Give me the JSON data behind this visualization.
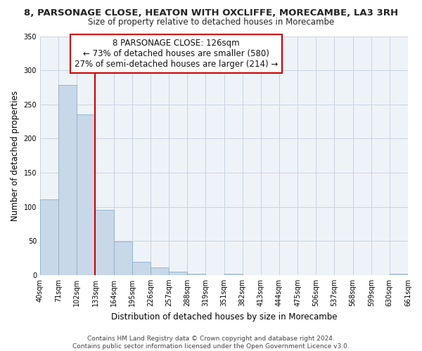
{
  "title": "8, PARSONAGE CLOSE, HEATON WITH OXCLIFFE, MORECAMBE, LA3 3RH",
  "subtitle": "Size of property relative to detached houses in Morecambe",
  "xlabel": "Distribution of detached houses by size in Morecambe",
  "ylabel": "Number of detached properties",
  "bar_values": [
    111,
    279,
    235,
    95,
    49,
    19,
    11,
    5,
    2,
    0,
    2,
    0,
    0,
    0,
    0,
    0,
    0,
    0,
    0,
    2
  ],
  "bar_labels": [
    "40sqm",
    "71sqm",
    "102sqm",
    "133sqm",
    "164sqm",
    "195sqm",
    "226sqm",
    "257sqm",
    "288sqm",
    "319sqm",
    "351sqm",
    "382sqm",
    "413sqm",
    "444sqm",
    "475sqm",
    "506sqm",
    "537sqm",
    "568sqm",
    "599sqm",
    "630sqm",
    "661sqm"
  ],
  "bar_color": "#c8d8e8",
  "bar_edge_color": "#8ab0cc",
  "vline_x": 2.5,
  "vline_color": "#cc0000",
  "annotation_line1": "8 PARSONAGE CLOSE: 126sqm",
  "annotation_line2": "← 73% of detached houses are smaller (580)",
  "annotation_line3": "27% of semi-detached houses are larger (214) →",
  "ylim": [
    0,
    350
  ],
  "yticks": [
    0,
    50,
    100,
    150,
    200,
    250,
    300,
    350
  ],
  "bg_color": "#ffffff",
  "plot_bg_color": "#eef3f8",
  "grid_color": "#c8d4e0",
  "footer_text": "Contains HM Land Registry data © Crown copyright and database right 2024.\nContains public sector information licensed under the Open Government Licence v3.0.",
  "title_fontsize": 9.5,
  "subtitle_fontsize": 8.5,
  "axis_label_fontsize": 8.5,
  "tick_fontsize": 7,
  "annotation_fontsize": 8.5,
  "footer_fontsize": 6.5
}
